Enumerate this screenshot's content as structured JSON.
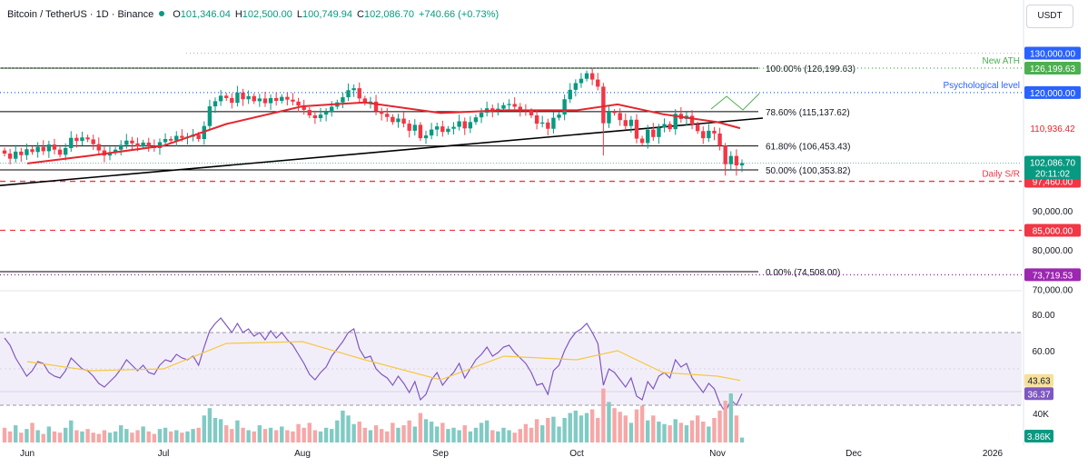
{
  "header": {
    "symbol": "Bitcoin / TetherUS · 1D · Binance",
    "o_label": "O",
    "o_value": "101,346.04",
    "h_label": "H",
    "h_value": "102,500.00",
    "l_label": "L",
    "l_value": "100,749.94",
    "c_label": "C",
    "c_value": "102,086.70",
    "change": "+740.66 (+0.73%)"
  },
  "currency_button": "USDT",
  "colors": {
    "up": "#089981",
    "down": "#f23645",
    "ema": "#e5262e",
    "trend": "#000000",
    "rsi": "#7e57c2",
    "rsi_ma": "#f5c842",
    "ath": "#4caf50",
    "psych": "#2962ff",
    "sr": "#f23645",
    "low": "#9c27b0"
  },
  "chart_data": [
    {
      "type": "candlestick",
      "title": "Bitcoin / TetherUS · 1D · Binance",
      "x_ticks": [
        "Jun",
        "Jul",
        "Aug",
        "Sep",
        "Oct",
        "Nov",
        "Dec",
        "2026"
      ],
      "y_ticks": [
        "90,000.00",
        "80,000.00",
        "70,000.00"
      ],
      "ylim": [
        70000,
        135000
      ],
      "price_axis_labels": {
        "current_price": "102,086.70",
        "countdown": "20:11:02",
        "ema_value": "110,936.42"
      },
      "fib_levels": [
        {
          "label": "100.00% (126,199.63)",
          "value": 126199.63
        },
        {
          "label": "78.60% (115,137.62)",
          "value": 115137.62
        },
        {
          "label": "61.80% (106,453.43)",
          "value": 106453.43
        },
        {
          "label": "50.00% (100,353.82)",
          "value": 100353.82
        },
        {
          "label": "0.00% (74,508.00)",
          "value": 74508
        }
      ],
      "levels": [
        {
          "label": "New ATH",
          "value": 126199.63,
          "tag": "126,199.63",
          "style": "dotted",
          "color": "#4caf50"
        },
        {
          "label": "Psychological level",
          "value": 120000,
          "tag": "120,000.00",
          "style": "dotted",
          "color": "#2962ff"
        },
        {
          "label": "Daily S/R",
          "value": 97460,
          "tag": "97,460.00",
          "style": "dashed",
          "color": "#f23645"
        },
        {
          "label": "",
          "value": 85000,
          "tag": "85,000.00",
          "style": "dashed",
          "color": "#f23645"
        },
        {
          "label": "",
          "value": 73719.53,
          "tag": "73,719.53",
          "style": "dotted",
          "color": "#9c27b0"
        }
      ],
      "round_levels": [
        {
          "value": 130000,
          "tag": "130,000.00"
        }
      ],
      "series": [
        {
          "name": "",
          "kind": "ema",
          "values": [
            {
              "x": "Jun 1",
              "y": 102000
            },
            {
              "x": "Jun 15",
              "y": 104000
            },
            {
              "x": "Jul 1",
              "y": 106500
            },
            {
              "x": "Jul 15",
              "y": 112000
            },
            {
              "x": "Aug 1",
              "y": 116500
            },
            {
              "x": "Aug 15",
              "y": 117500
            },
            {
              "x": "Sep 1",
              "y": 114800
            },
            {
              "x": "Sep 15",
              "y": 115500
            },
            {
              "x": "Oct 1",
              "y": 115500
            },
            {
              "x": "Oct 10",
              "y": 117000
            },
            {
              "x": "Oct 20",
              "y": 114500
            },
            {
              "x": "Nov 1",
              "y": 112500
            },
            {
              "x": "Nov 6",
              "y": 110936.42
            }
          ]
        },
        {
          "name": "",
          "kind": "trendline",
          "values": [
            {
              "x": "Jun 1",
              "y": 97000
            },
            {
              "x": "Nov 6",
              "y": 113000
            }
          ]
        },
        {
          "name": "",
          "kind": "closes",
          "values": [
            104500,
            103200,
            105000,
            104100,
            105600,
            104900,
            106200,
            105100,
            106800,
            105500,
            104200,
            105900,
            108500,
            107700,
            108600,
            108100,
            106900,
            105300,
            104000,
            104800,
            105500,
            106700,
            107800,
            107100,
            106300,
            107300,
            106400,
            105900,
            107400,
            108200,
            107800,
            109000,
            108500,
            108800,
            109300,
            108200,
            111500,
            116500,
            117800,
            119200,
            118600,
            117400,
            120000,
            118300,
            119100,
            117800,
            118500,
            117300,
            118600,
            117900,
            118900,
            118200,
            117700,
            116700,
            115600,
            114200,
            113500,
            114400,
            115100,
            116400,
            117500,
            118800,
            120600,
            121100,
            118500,
            117400,
            117700,
            115200,
            114600,
            113800,
            112500,
            113400,
            112100,
            110300,
            111800,
            108400,
            109100,
            110600,
            111400,
            110000,
            110800,
            111300,
            112700,
            110900,
            112500,
            113700,
            114900,
            116000,
            115400,
            115900,
            116800,
            117100,
            116400,
            115600,
            115300,
            114200,
            112100,
            112400,
            110800,
            113600,
            114400,
            118300,
            120700,
            122400,
            123500,
            124900,
            123300,
            121500,
            112200,
            115100,
            114800,
            113000,
            111500,
            113100,
            108300,
            107200,
            110600,
            108700,
            111100,
            112000,
            110700,
            114600,
            113300,
            114100,
            111900,
            110200,
            108400,
            110300,
            109600,
            106500,
            101800,
            103900,
            101500,
            102086.7
          ]
        }
      ]
    },
    {
      "type": "line",
      "title": "",
      "y_ticks": [
        "80.00",
        "60.00"
      ],
      "ylim": [
        20,
        82
      ],
      "band": [
        30,
        70
      ],
      "labels": {
        "ma": "43.63",
        "rsi": "36.37"
      },
      "series": [
        {
          "name": "",
          "values": [
            67,
            63,
            56,
            51,
            46,
            49,
            54,
            53,
            48,
            46,
            45,
            49,
            56,
            53,
            50,
            49,
            46,
            42,
            40,
            43,
            46,
            50,
            55,
            52,
            49,
            52,
            48,
            47,
            52,
            55,
            54,
            58,
            56,
            55,
            57,
            52,
            62,
            71,
            75,
            78,
            74,
            70,
            75,
            70,
            72,
            68,
            70,
            66,
            71,
            67,
            70,
            66,
            63,
            58,
            53,
            47,
            44,
            48,
            51,
            57,
            61,
            65,
            70,
            72,
            61,
            56,
            57,
            50,
            47,
            45,
            41,
            46,
            42,
            37,
            43,
            33,
            36,
            44,
            48,
            41,
            45,
            48,
            53,
            45,
            50,
            55,
            58,
            62,
            57,
            59,
            62,
            63,
            59,
            56,
            53,
            48,
            41,
            42,
            36,
            49,
            52,
            60,
            66,
            70,
            72,
            75,
            70,
            64,
            41,
            50,
            48,
            44,
            40,
            45,
            35,
            33,
            43,
            39,
            46,
            48,
            45,
            55,
            51,
            53,
            45,
            41,
            37,
            42,
            39,
            31,
            26,
            33,
            30,
            36.37
          ]
        },
        {
          "name": "",
          "values": [
            {
              "x": "Jun 1",
              "y": 54
            },
            {
              "x": "Jun 15",
              "y": 49
            },
            {
              "x": "Jul 1",
              "y": 50
            },
            {
              "x": "Jul 15",
              "y": 64
            },
            {
              "x": "Aug 1",
              "y": 65
            },
            {
              "x": "Aug 15",
              "y": 55
            },
            {
              "x": "Sep 1",
              "y": 44
            },
            {
              "x": "Sep 15",
              "y": 57
            },
            {
              "x": "Oct 1",
              "y": 55
            },
            {
              "x": "Oct 10",
              "y": 60
            },
            {
              "x": "Oct 20",
              "y": 48
            },
            {
              "x": "Nov 1",
              "y": 46
            },
            {
              "x": "Nov 6",
              "y": 43.63
            }
          ]
        }
      ]
    },
    {
      "type": "bar",
      "title": "",
      "y_ticks": [
        "40K"
      ],
      "labels": {
        "last": "3.86K"
      },
      "values": [
        12,
        9,
        14,
        8,
        11,
        16,
        10,
        7,
        13,
        9,
        8,
        12,
        18,
        10,
        9,
        11,
        8,
        7,
        10,
        8,
        9,
        14,
        11,
        8,
        10,
        13,
        9,
        7,
        11,
        12,
        9,
        10,
        8,
        9,
        11,
        12,
        22,
        28,
        20,
        19,
        14,
        11,
        18,
        12,
        10,
        9,
        14,
        11,
        12,
        10,
        13,
        10,
        9,
        15,
        12,
        16,
        10,
        9,
        12,
        11,
        18,
        26,
        22,
        15,
        17,
        12,
        10,
        14,
        11,
        9,
        16,
        12,
        14,
        18,
        13,
        24,
        19,
        17,
        13,
        16,
        11,
        12,
        10,
        14,
        9,
        12,
        16,
        18,
        10,
        9,
        12,
        10,
        8,
        11,
        15,
        12,
        19,
        14,
        20,
        21,
        13,
        20,
        24,
        26,
        22,
        24,
        27,
        20,
        44,
        33,
        28,
        25,
        22,
        16,
        27,
        30,
        18,
        22,
        17,
        15,
        14,
        19,
        16,
        14,
        18,
        22,
        17,
        13,
        20,
        26,
        34,
        40,
        22,
        4
      ]
    }
  ]
}
